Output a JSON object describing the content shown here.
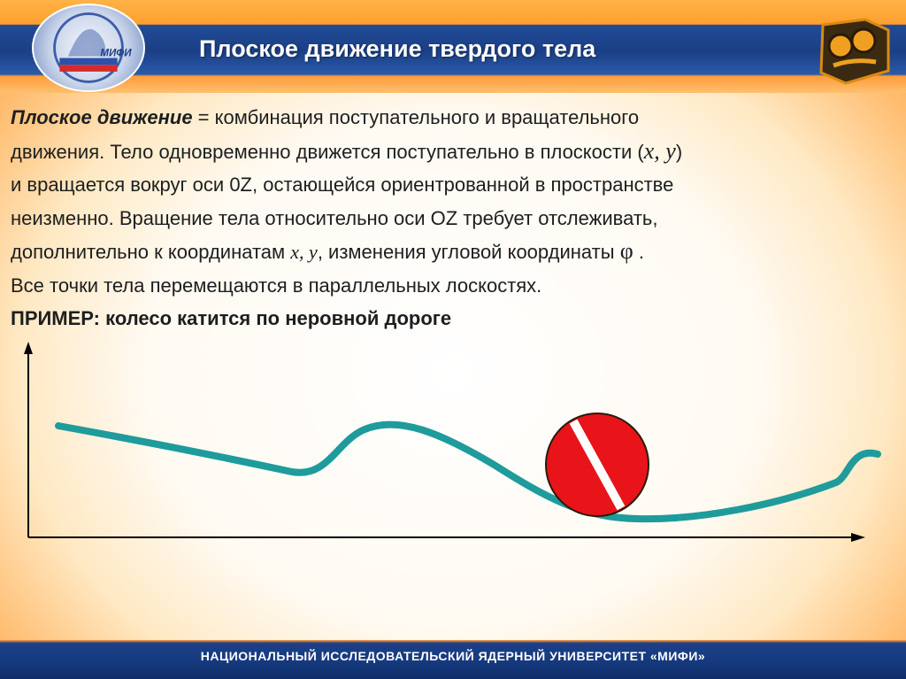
{
  "header": {
    "title": "Плоское движение твердого тела",
    "logo_text": "МИФИ",
    "colors": {
      "header_blue": "#1b3f86",
      "frame_orange": "#ff9a3c"
    }
  },
  "content": {
    "line1_term": "Плоское движение",
    "line1_rest": " = комбинация поступательного и вращательного",
    "line2_text": "движения. Тело одновременно движется поступательно в плоскости (",
    "line2_x": "x",
    "line2_sep": ", ",
    "line2_y": "y",
    "line2_close": ")",
    "line3": "и вращается вокруг оси 0Z, остающейся ориентрованной в пространстве",
    "line4": "неизменно. Вращение тела относительно оси OZ требует отслеживать,",
    "line5_text": "дополнительно к координатам ",
    "line5_xy": "x, y",
    "line5_rest": ", изменения угловой координаты ",
    "line5_phi": "φ",
    "line5_end": " .",
    "line6": "Все точки тела перемещаются в параллельных лоскостях.",
    "line7": "ПРИМЕР: колесо катится по неровной дороге"
  },
  "diagram": {
    "road_color": "#1f9b9b",
    "wheel_color": "#e8141a",
    "stripe_color": "#ffffff",
    "axis_color": "#000000"
  },
  "footer": {
    "text": "НАЦИОНАЛЬНЫЙ ИССЛЕДОВАТЕЛЬСКИЙ ЯДЕРНЫЙ УНИВЕРСИТЕТ «МИФИ»"
  }
}
